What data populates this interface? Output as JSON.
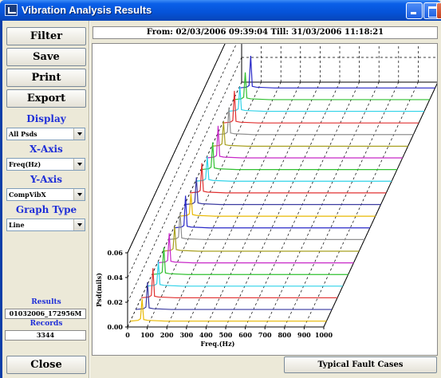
{
  "window": {
    "title": "Vibration Analysis Results"
  },
  "sidebar": {
    "filter_label": "Filter",
    "save_label": "Save",
    "print_label": "Print",
    "export_label": "Export",
    "display_heading": "Display",
    "display_value": "All Psds",
    "xaxis_heading": "X-Axis",
    "xaxis_value": "Freq(Hz)",
    "yaxis_heading": "Y-Axis",
    "yaxis_value": "CompVibX",
    "graphtype_heading": "Graph Type",
    "graphtype_value": "Line",
    "results_heading": "Results",
    "results_value": "01032006_172956M",
    "records_heading": "Records",
    "records_value": "3344",
    "close_label": "Close"
  },
  "range_text": "From: 02/03/2006 09:39:04  Till: 31/03/2006 11:18:21",
  "fault_button_label": "Typical Fault Cases",
  "chart_data": {
    "type": "line",
    "xlabel": "Freq.(Hz)",
    "ylabel": "Psd(mils)",
    "xlim": [
      0,
      1000
    ],
    "ylim": [
      0,
      0.06
    ],
    "x_ticks": [
      "0",
      "100",
      "200",
      "300",
      "400",
      "500",
      "600",
      "700",
      "800",
      "900",
      "1000"
    ],
    "y_ticks": [
      "0.00",
      "0.02",
      "0.04",
      "0.06"
    ],
    "peak_freq": 60,
    "series": [
      {
        "color": "#e8b800",
        "peak": 0.018
      },
      {
        "color": "#3a3aa0",
        "peak": 0.022
      },
      {
        "color": "#e03030",
        "peak": 0.024
      },
      {
        "color": "#2fd2e8",
        "peak": 0.02
      },
      {
        "color": "#30c030",
        "peak": 0.022
      },
      {
        "color": "#c828c8",
        "peak": 0.024
      },
      {
        "color": "#a8a020",
        "peak": 0.02
      },
      {
        "color": "#909090",
        "peak": 0.022
      },
      {
        "color": "#2828c8",
        "peak": 0.026
      },
      {
        "color": "#e8b800",
        "peak": 0.018
      },
      {
        "color": "#3a3aa0",
        "peak": 0.022
      },
      {
        "color": "#e03030",
        "peak": 0.024
      },
      {
        "color": "#2fd2e8",
        "peak": 0.02
      },
      {
        "color": "#30c030",
        "peak": 0.022
      },
      {
        "color": "#c828c8",
        "peak": 0.026
      },
      {
        "color": "#a8a020",
        "peak": 0.02
      },
      {
        "color": "#909090",
        "peak": 0.022
      },
      {
        "color": "#e03030",
        "peak": 0.026
      },
      {
        "color": "#2fd2e8",
        "peak": 0.02
      },
      {
        "color": "#30c030",
        "peak": 0.022
      },
      {
        "color": "#2828c8",
        "peak": 0.026
      }
    ]
  }
}
